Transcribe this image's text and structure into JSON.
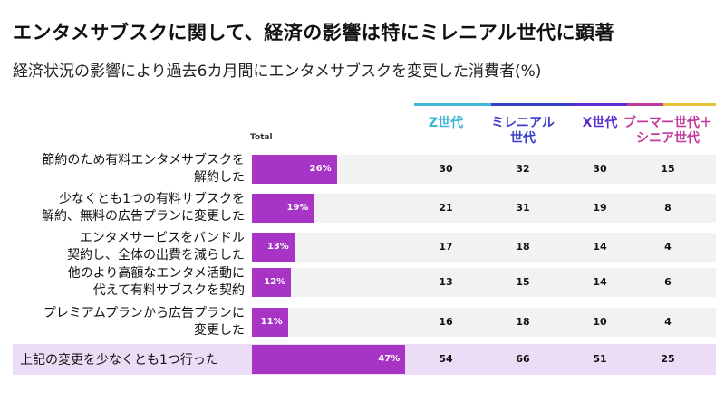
{
  "title": "エンタメサブスクに関して、経済の影響は特にミレニアル世代に顕著",
  "subtitle": "経済状況の影響により過去6カ月間にエンタメサブスクを変更した消費者(%)",
  "colors": {
    "bar": "#a734c5",
    "gen_z": "#3fb6d6",
    "millennial": "#3a3fc7",
    "gen_x": "#5a2fd1",
    "boomer": "#c23b9a",
    "senior": "#e8c23a"
  },
  "chart_data": {
    "type": "table",
    "title": "エンタメサブスクに関して、経済の影響は特にミレニアル世代に顕著",
    "subtitle": "経済状況の影響により過去6カ月間にエンタメサブスクを変更した消費者(%)",
    "total_header": "Total",
    "generation_headers": [
      "Z世代",
      "ミレニアル\n世代",
      "X世代",
      "ブーマー世代＋\nシニア世代"
    ],
    "rows": [
      {
        "label": "節約のため有料エンタメサブスクを\n解約した",
        "total": 26,
        "total_label": "26%",
        "values": [
          30,
          32,
          30,
          15
        ]
      },
      {
        "label": "少なくとも1つの有料サブスクを\n解約、無料の広告プランに変更した",
        "total": 19,
        "total_label": "19%",
        "values": [
          21,
          31,
          19,
          8
        ]
      },
      {
        "label": "エンタメサービスをバンドル\n契約し、全体の出費を減らした",
        "total": 13,
        "total_label": "13%",
        "values": [
          17,
          18,
          14,
          4
        ]
      },
      {
        "label": "他のより高額なエンタメ活動に\n代えて有料サブスクを契約",
        "total": 12,
        "total_label": "12%",
        "values": [
          13,
          15,
          14,
          6
        ]
      },
      {
        "label": "プレミアムプランから広告プランに\n変更した",
        "total": 11,
        "total_label": "11%",
        "values": [
          16,
          18,
          10,
          4
        ]
      }
    ],
    "summary_row": {
      "label": "上記の変更を少なくとも1つ行った",
      "total": 47,
      "total_label": "47%",
      "values": [
        54,
        66,
        51,
        25
      ]
    },
    "xlim": [
      0,
      100
    ]
  }
}
